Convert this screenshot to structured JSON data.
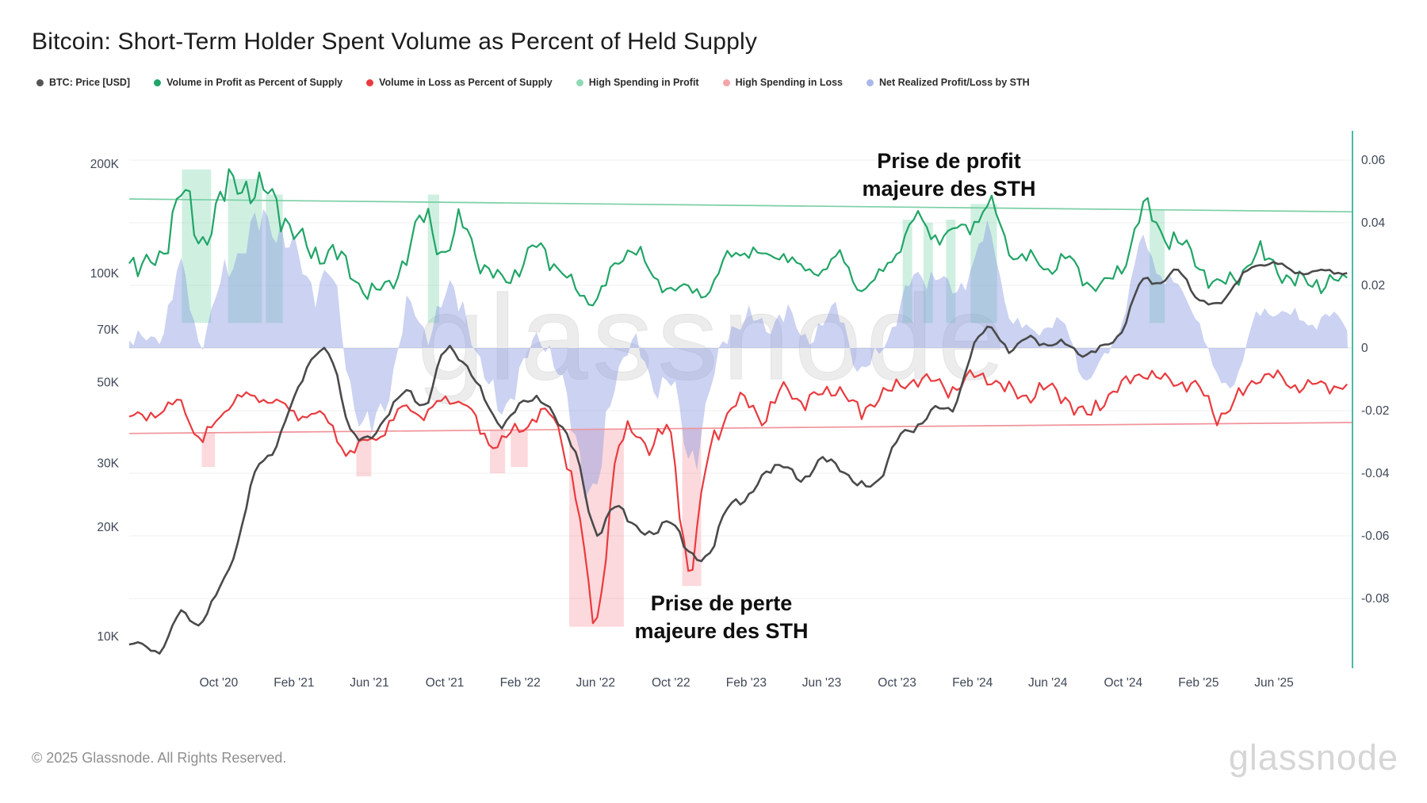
{
  "title": "Bitcoin: Short-Term Holder Spent Volume as Percent of Held Supply",
  "legend": [
    {
      "label": "BTC: Price [USD]",
      "color": "#555555"
    },
    {
      "label": "Volume in Profit as Percent of Supply",
      "color": "#21a567"
    },
    {
      "label": "Volume in Loss as Percent of Supply",
      "color": "#e93b3f"
    },
    {
      "label": "High Spending in Profit",
      "color": "#8fd9b6"
    },
    {
      "label": "High Spending in Loss",
      "color": "#f4a5aa"
    },
    {
      "label": "Net Realized Profit/Loss by STH",
      "color": "#aab8ea"
    }
  ],
  "annotations": {
    "profit": {
      "line1": "Prise de profit",
      "line2": "majeure des STH"
    },
    "loss": {
      "line1": "Prise de perte",
      "line2": "majeure des STH"
    }
  },
  "watermark": "glassnode",
  "footer": {
    "copyright": "© 2025 Glassnode. All Rights Reserved.",
    "brand": "glassnode"
  },
  "chart_data": {
    "type": "line",
    "title": "Bitcoin: Short-Term Holder Spent Volume as Percent of Held Supply",
    "x_axis": {
      "start_month": "2020-05",
      "end_month": "2025-07"
    },
    "left_axis": {
      "scale": "log",
      "unit": "USD",
      "ticks": [
        {
          "label": "200K",
          "v": 200000
        },
        {
          "label": "100K",
          "v": 100000
        },
        {
          "label": "70K",
          "v": 70000
        },
        {
          "label": "50K",
          "v": 50000
        },
        {
          "label": "30K",
          "v": 30000
        },
        {
          "label": "20K",
          "v": 20000
        },
        {
          "label": "10K",
          "v": 10000
        }
      ]
    },
    "right_axis": {
      "scale": "linear",
      "range": [
        -0.1,
        0.07
      ],
      "ticks": [
        {
          "label": "0.06",
          "v": 0.06
        },
        {
          "label": "0.04",
          "v": 0.04
        },
        {
          "label": "0.02",
          "v": 0.02
        },
        {
          "label": "0",
          "v": 0
        },
        {
          "label": "-0.02",
          "v": -0.02
        },
        {
          "label": "-0.04",
          "v": -0.04
        },
        {
          "label": "-0.06",
          "v": -0.06
        },
        {
          "label": "-0.08",
          "v": -0.08
        }
      ]
    },
    "x_ticks": [
      {
        "label": "Oct '20",
        "o": 5
      },
      {
        "label": "Feb '21",
        "o": 9
      },
      {
        "label": "Jun '21",
        "o": 13
      },
      {
        "label": "Oct '21",
        "o": 17
      },
      {
        "label": "Feb '22",
        "o": 21
      },
      {
        "label": "Jun '22",
        "o": 25
      },
      {
        "label": "Oct '22",
        "o": 29
      },
      {
        "label": "Feb '23",
        "o": 33
      },
      {
        "label": "Jun '23",
        "o": 37
      },
      {
        "label": "Oct '23",
        "o": 41
      },
      {
        "label": "Feb '24",
        "o": 45
      },
      {
        "label": "Jun '24",
        "o": 49
      },
      {
        "label": "Oct '24",
        "o": 53
      },
      {
        "label": "Feb '25",
        "o": 57
      },
      {
        "label": "Jun '25",
        "o": 61
      }
    ],
    "months": [
      "2020-05",
      "2020-06",
      "2020-07",
      "2020-08",
      "2020-09",
      "2020-10",
      "2020-11",
      "2020-12",
      "2021-01",
      "2021-02",
      "2021-03",
      "2021-04",
      "2021-05",
      "2021-06",
      "2021-07",
      "2021-08",
      "2021-09",
      "2021-10",
      "2021-11",
      "2021-12",
      "2022-01",
      "2022-02",
      "2022-03",
      "2022-04",
      "2022-05",
      "2022-06",
      "2022-07",
      "2022-08",
      "2022-09",
      "2022-10",
      "2022-11",
      "2022-12",
      "2023-01",
      "2023-02",
      "2023-03",
      "2023-04",
      "2023-05",
      "2023-06",
      "2023-07",
      "2023-08",
      "2023-09",
      "2023-10",
      "2023-11",
      "2023-12",
      "2024-01",
      "2024-02",
      "2024-03",
      "2024-04",
      "2024-05",
      "2024-06",
      "2024-07",
      "2024-08",
      "2024-09",
      "2024-10",
      "2024-11",
      "2024-12",
      "2025-01",
      "2025-02",
      "2025-03",
      "2025-04",
      "2025-05",
      "2025-06",
      "2025-07"
    ],
    "series": [
      {
        "name": "BTC: Price [USD]",
        "axis": "left",
        "color": "#4a4a4a",
        "values": [
          9400,
          9500,
          9200,
          11700,
          10800,
          13500,
          18000,
          28900,
          33100,
          45200,
          58900,
          57800,
          37300,
          35000,
          41500,
          47100,
          43800,
          61300,
          57000,
          46200,
          38500,
          43200,
          45500,
          38600,
          31800,
          19000,
          23300,
          20000,
          19400,
          20500,
          17200,
          16500,
          23100,
          23500,
          28500,
          29200,
          27200,
          30500,
          29200,
          26000,
          27000,
          34700,
          37700,
          42300,
          43000,
          61200,
          71300,
          60600,
          67500,
          62700,
          64600,
          59000,
          63800,
          70000,
          96400,
          93400,
          102000,
          84400,
          82500,
          94200,
          104600,
          107000,
          101000
        ]
      },
      {
        "name": "Volume in Profit as Percent of Supply",
        "axis": "right",
        "color": "#21a567",
        "values": [
          0.03,
          0.026,
          0.03,
          0.05,
          0.034,
          0.046,
          0.053,
          0.05,
          0.047,
          0.037,
          0.03,
          0.031,
          0.024,
          0.018,
          0.02,
          0.03,
          0.042,
          0.03,
          0.04,
          0.026,
          0.022,
          0.026,
          0.032,
          0.026,
          0.018,
          0.016,
          0.025,
          0.033,
          0.022,
          0.02,
          0.018,
          0.019,
          0.028,
          0.032,
          0.028,
          0.031,
          0.024,
          0.026,
          0.028,
          0.02,
          0.022,
          0.032,
          0.04,
          0.037,
          0.036,
          0.041,
          0.044,
          0.032,
          0.028,
          0.026,
          0.028,
          0.022,
          0.02,
          0.027,
          0.043,
          0.038,
          0.033,
          0.027,
          0.02,
          0.023,
          0.029,
          0.027,
          0.021
        ]
      },
      {
        "name": "Volume in Loss as Percent of Supply",
        "axis": "right",
        "color": "#e93b3f",
        "values": [
          -0.024,
          -0.02,
          -0.022,
          -0.016,
          -0.031,
          -0.021,
          -0.017,
          -0.015,
          -0.018,
          -0.02,
          -0.022,
          -0.024,
          -0.035,
          -0.028,
          -0.026,
          -0.018,
          -0.022,
          -0.016,
          -0.018,
          -0.027,
          -0.03,
          -0.026,
          -0.021,
          -0.026,
          -0.048,
          -0.088,
          -0.038,
          -0.027,
          -0.031,
          -0.029,
          -0.07,
          -0.034,
          -0.021,
          -0.017,
          -0.022,
          -0.013,
          -0.017,
          -0.015,
          -0.013,
          -0.021,
          -0.015,
          -0.013,
          -0.01,
          -0.011,
          -0.013,
          -0.009,
          -0.01,
          -0.014,
          -0.015,
          -0.013,
          -0.016,
          -0.022,
          -0.016,
          -0.012,
          -0.008,
          -0.01,
          -0.011,
          -0.013,
          -0.021,
          -0.017,
          -0.01,
          -0.009,
          -0.012
        ]
      },
      {
        "name": "Net Realized Profit/Loss by STH",
        "axis": "right",
        "type": "area",
        "color": "#8294e1",
        "values": [
          0.004,
          0.002,
          0.006,
          0.024,
          0.003,
          0.018,
          0.031,
          0.038,
          0.04,
          0.03,
          0.02,
          0.022,
          -0.012,
          -0.026,
          -0.014,
          0.012,
          0.005,
          0.016,
          0.013,
          -0.008,
          -0.018,
          -0.009,
          0.004,
          -0.008,
          -0.03,
          -0.046,
          -0.011,
          0.002,
          -0.012,
          -0.01,
          -0.036,
          -0.015,
          0.004,
          0.01,
          0.006,
          0.012,
          0.003,
          0.008,
          0.01,
          -0.007,
          -0.002,
          0.011,
          0.022,
          0.024,
          0.017,
          0.028,
          0.034,
          0.011,
          0.005,
          0.008,
          0.005,
          -0.009,
          -0.004,
          0.011,
          0.032,
          0.025,
          0.017,
          0.01,
          -0.011,
          -0.008,
          0.008,
          0.013,
          0.009
        ]
      }
    ],
    "thresholds": {
      "profit": {
        "name": "High Spending in Profit threshold",
        "start": 0.0476,
        "end": 0.0435,
        "color": "#7ccfa6"
      },
      "loss": {
        "name": "High Spending in Loss threshold",
        "start": -0.0273,
        "end": -0.0238,
        "color": "#f0949b"
      }
    },
    "profit_bands": [
      {
        "s": 3.05,
        "e": 4.6,
        "top": 0.057
      },
      {
        "s": 5.5,
        "e": 7.3,
        "top": 0.054
      },
      {
        "s": 7.5,
        "e": 8.4,
        "top": 0.049
      },
      {
        "s": 16.1,
        "e": 16.7,
        "top": 0.049
      },
      {
        "s": 41.3,
        "e": 41.8,
        "top": 0.041
      },
      {
        "s": 42.4,
        "e": 42.9,
        "top": 0.04
      },
      {
        "s": 43.6,
        "e": 44.1,
        "top": 0.041
      },
      {
        "s": 44.9,
        "e": 46.3,
        "top": 0.046
      },
      {
        "s": 54.4,
        "e": 55.2,
        "top": 0.044
      }
    ],
    "loss_bands": [
      {
        "s": 4.1,
        "e": 4.8,
        "bottom": -0.038
      },
      {
        "s": 12.3,
        "e": 13.1,
        "bottom": -0.041
      },
      {
        "s": 19.4,
        "e": 20.2,
        "bottom": -0.04
      },
      {
        "s": 20.5,
        "e": 21.4,
        "bottom": -0.038
      },
      {
        "s": 23.6,
        "e": 26.5,
        "bottom": -0.089
      },
      {
        "s": 29.6,
        "e": 30.6,
        "bottom": -0.076
      }
    ],
    "band_profit_base": 0.008,
    "colors": {
      "profit_band_fill": "rgba(96,205,155,0.30)",
      "loss_band_fill": "rgba(244,118,128,0.28)",
      "net_area_fill": "rgba(130,148,225,0.42)",
      "grid": "#efefef",
      "zero_grid": "#e2e2e2",
      "axis_text": "#3f4756",
      "edge_line": "#4cb9a4",
      "watermark": "#ececec"
    }
  }
}
